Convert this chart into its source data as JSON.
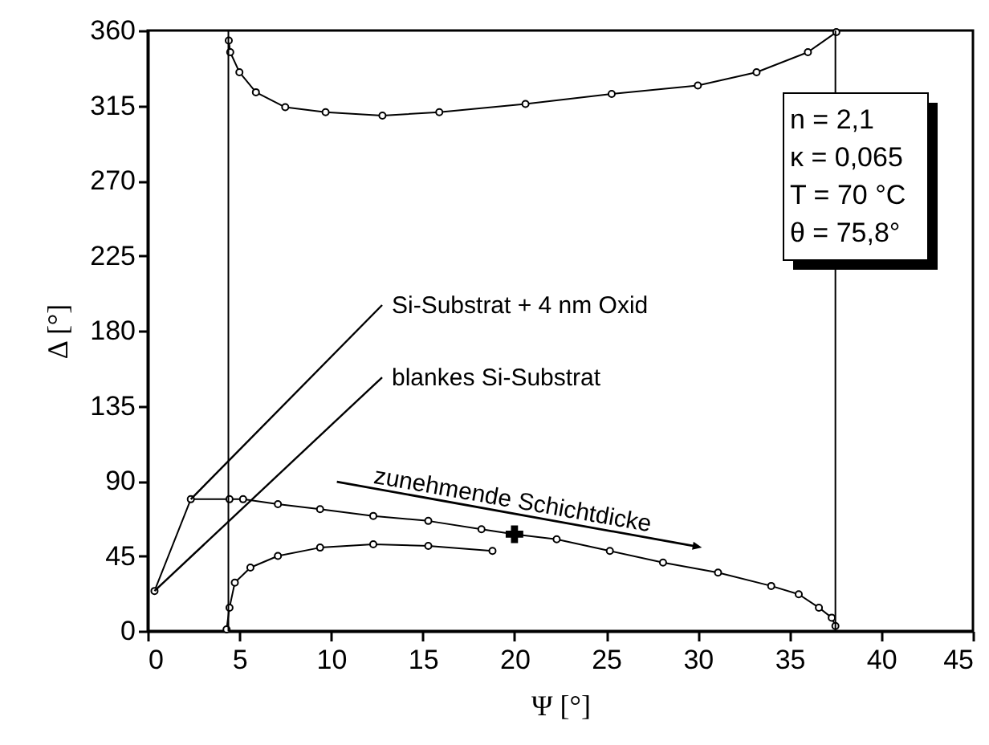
{
  "chart_data": {
    "type": "line",
    "xlabel": "Ψ [°]",
    "ylabel": "Δ [°]",
    "xlim": [
      0,
      45
    ],
    "xticks": [
      0,
      5,
      10,
      15,
      20,
      25,
      30,
      35,
      40,
      45
    ],
    "ylim": [
      0,
      360
    ],
    "yticks": [
      0,
      45,
      90,
      135,
      180,
      225,
      270,
      315,
      360
    ],
    "grid": false,
    "marker": "circle",
    "line_style": "solid",
    "series": [
      {
        "color": "#000000",
        "x": [
          0.37,
          2.35,
          4.46,
          5.2,
          7.1,
          9.4,
          12.3,
          15.3,
          18.2,
          20,
          22.3,
          25.2,
          28.1,
          31.1,
          34,
          35.5,
          36.6,
          37.3,
          37.5
        ],
        "values": [
          24,
          79,
          79,
          79,
          76,
          73,
          69,
          66,
          61,
          58,
          55,
          48,
          41,
          35,
          27,
          22,
          14,
          8,
          3
        ]
      },
      {
        "color": "#000000",
        "x": [
          37.55,
          36,
          33.2,
          30,
          25.3,
          20.6,
          15.9,
          12.8,
          9.7,
          7.5,
          5.9,
          5,
          4.5,
          4.42
        ],
        "values": [
          359,
          347,
          335,
          327,
          322,
          316,
          311,
          309,
          311,
          314,
          323,
          335,
          347,
          354
        ]
      },
      {
        "color": "#000000",
        "x": [
          4.3,
          4.46,
          4.75,
          5.6,
          7.1,
          9.4,
          12.3,
          15.3,
          18.8
        ],
        "values": [
          1,
          14,
          29,
          38,
          45,
          50,
          52,
          51,
          48
        ]
      },
      {
        "type": "scatter",
        "color": "#000000",
        "marker": "cross",
        "x": [
          20
        ],
        "values": [
          58
        ]
      }
    ],
    "ref_lines": [
      {
        "axis": "x",
        "value": 4.4,
        "label": null,
        "color": "#000000"
      },
      {
        "axis": "x",
        "value": 37.5,
        "label": null,
        "color": "#000000"
      }
    ],
    "annotations": [
      {
        "text": "Si-Substrat + 4 nm Oxid",
        "x": 2.35,
        "y": 79
      },
      {
        "text": "blankes Si-Substrat",
        "x": 0.37,
        "y": 24
      },
      "zunehmende Schichtdicke",
      "n = 2,1",
      "κ = 0,065",
      "T = 70 °C",
      "θ = 75,8°"
    ]
  }
}
